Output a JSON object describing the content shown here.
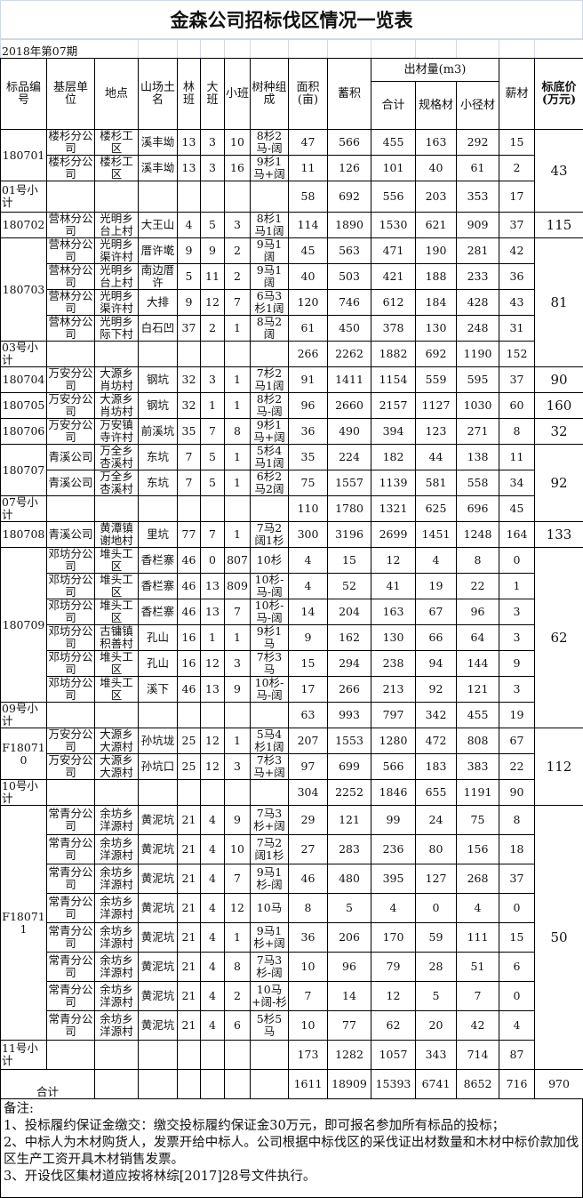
{
  "title": "金森公司招标伐区情况一览表",
  "period": "2018年第07期",
  "headers": {
    "lot_id": "标品编号",
    "unit": "基层单位",
    "location": "地点",
    "site_name": "山场土名",
    "lin_ban": "林班",
    "da_ban": "大班",
    "xiao_ban": "小班",
    "species": "树种组成",
    "area": "面积(亩)",
    "volume": "蓄积",
    "output_group": "出材量(m3)",
    "output_total": "合计",
    "standard_timber": "规格材",
    "small_timber": "小径材",
    "firewood": "薪材",
    "reserve_price": "标底价(万元)"
  },
  "groups": [
    {
      "id": "180701",
      "price": "43",
      "rows": [
        [
          "楼杉分公司",
          "楼杉工区",
          "溪丰坳",
          "13",
          "3",
          "10",
          "8杉2马-阔",
          "47",
          "566",
          "455",
          "163",
          "292",
          "15"
        ],
        [
          "楼杉分公司",
          "楼杉工区",
          "溪丰坳",
          "13",
          "3",
          "16",
          "9杉1马+阔",
          "11",
          "126",
          "101",
          "40",
          "61",
          "2"
        ]
      ],
      "subtotal": {
        "label": "01号小计",
        "values": [
          "58",
          "692",
          "556",
          "203",
          "353",
          "17"
        ]
      }
    },
    {
      "id": "180702",
      "price": "115",
      "rows": [
        [
          "营林分公司",
          "光明乡台上村",
          "大王山",
          "4",
          "5",
          "3",
          "8杉1马1阔",
          "114",
          "1890",
          "1530",
          "621",
          "909",
          "37"
        ]
      ]
    },
    {
      "id": "180703",
      "price": "81",
      "rows": [
        [
          "营林分公司",
          "光明乡渠许村",
          "厝许墘",
          "9",
          "9",
          "2",
          "9马1阔",
          "45",
          "563",
          "471",
          "190",
          "281",
          "42"
        ],
        [
          "营林分公司",
          "光明乡台上村",
          "南边厝许",
          "5",
          "11",
          "2",
          "9马1阔",
          "40",
          "503",
          "421",
          "188",
          "233",
          "36"
        ],
        [
          "营林分公司",
          "光明乡渠许村",
          "大排",
          "9",
          "12",
          "7",
          "6马3杉1阔",
          "120",
          "746",
          "612",
          "184",
          "428",
          "43"
        ],
        [
          "营林分公司",
          "光明乡际下村",
          "白石凹",
          "37",
          "2",
          "1",
          "8马2阔",
          "61",
          "450",
          "378",
          "130",
          "248",
          "31"
        ]
      ],
      "subtotal": {
        "label": "03号小计",
        "values": [
          "266",
          "2262",
          "1882",
          "692",
          "1190",
          "152"
        ]
      }
    },
    {
      "id": "180704",
      "price": "90",
      "rows": [
        [
          "万安分公司",
          "大源乡肖坊村",
          "钢坑",
          "32",
          "3",
          "1",
          "7杉2马1阔",
          "91",
          "1411",
          "1154",
          "559",
          "595",
          "37"
        ]
      ]
    },
    {
      "id": "180705",
      "price": "160",
      "rows": [
        [
          "万安分公司",
          "大源乡肖坊村",
          "钢坑",
          "32",
          "1",
          "1",
          "8杉2马-阔",
          "96",
          "2660",
          "2157",
          "1127",
          "1030",
          "60"
        ]
      ]
    },
    {
      "id": "180706",
      "price": "32",
      "rows": [
        [
          "万安分公司",
          "万安镇寺许村",
          "前溪坑",
          "35",
          "7",
          "8",
          "9杉1马+阔",
          "36",
          "490",
          "394",
          "123",
          "271",
          "8"
        ]
      ]
    },
    {
      "id": "180707",
      "price": "92",
      "rows": [
        [
          "青溪公司",
          "万全乡杏溪村",
          "东坑",
          "7",
          "5",
          "1",
          "5杉4马1阔",
          "35",
          "224",
          "182",
          "44",
          "138",
          "11"
        ],
        [
          "青溪公司",
          "万全乡杏溪村",
          "东坑",
          "7",
          "5",
          "1",
          "6杉2马2阔",
          "75",
          "1557",
          "1139",
          "581",
          "558",
          "34"
        ]
      ],
      "subtotal": {
        "label": "07号小计",
        "values": [
          "110",
          "1780",
          "1321",
          "625",
          "696",
          "45"
        ]
      }
    },
    {
      "id": "180708",
      "price": "133",
      "rows": [
        [
          "青溪公司",
          "黄潭镇谢地村",
          "里坑",
          "77",
          "7",
          "1",
          "7马2阔1杉",
          "300",
          "3196",
          "2699",
          "1451",
          "1248",
          "164"
        ]
      ]
    },
    {
      "id": "180709",
      "price": "62",
      "rows": [
        [
          "邓坊分公司",
          "堆头工区",
          "香栏寨",
          "46",
          "0",
          "807",
          "10杉",
          "4",
          "15",
          "12",
          "4",
          "8",
          "0"
        ],
        [
          "邓坊分公司",
          "堆头工区",
          "香栏寨",
          "46",
          "13",
          "809",
          "10杉-马-阔",
          "4",
          "52",
          "41",
          "19",
          "22",
          "1"
        ],
        [
          "邓坊分公司",
          "堆头工区",
          "香栏寨",
          "46",
          "13",
          "7",
          "10杉-马-阔",
          "14",
          "204",
          "163",
          "67",
          "96",
          "3"
        ],
        [
          "邓坊分公司",
          "古镛镇积善村",
          "孔山",
          "16",
          "1",
          "1",
          "9杉1马",
          "9",
          "162",
          "130",
          "66",
          "64",
          "3"
        ],
        [
          "邓坊分公司",
          "堆头工区",
          "孔山",
          "16",
          "12",
          "3",
          "7杉3马",
          "15",
          "294",
          "238",
          "94",
          "144",
          "9"
        ],
        [
          "邓坊分公司",
          "堆头工区",
          "溪下",
          "46",
          "13",
          "9",
          "10杉-马-阔",
          "17",
          "266",
          "213",
          "92",
          "121",
          "3"
        ]
      ],
      "subtotal": {
        "label": "09号小计",
        "values": [
          "63",
          "993",
          "797",
          "342",
          "455",
          "19"
        ]
      }
    },
    {
      "id": "F180710",
      "price": "112",
      "rows": [
        [
          "万安分公司",
          "大源乡大源村",
          "孙坑垅",
          "25",
          "12",
          "1",
          "5马4杉1阔",
          "207",
          "1553",
          "1280",
          "472",
          "808",
          "67"
        ],
        [
          "万安分公司",
          "大源乡大源村",
          "孙坑口",
          "25",
          "12",
          "3",
          "7杉3马+阔",
          "97",
          "699",
          "566",
          "183",
          "383",
          "22"
        ]
      ],
      "subtotal": {
        "label": "10号小计",
        "values": [
          "304",
          "2252",
          "1846",
          "655",
          "1191",
          "90"
        ]
      }
    },
    {
      "id": "F180711",
      "price": "50",
      "rows": [
        [
          "常青分公司",
          "余坊乡洋源村",
          "黄泥坑",
          "21",
          "4",
          "9",
          "7马3杉+阔",
          "29",
          "121",
          "99",
          "24",
          "75",
          "8"
        ],
        [
          "常青分公司",
          "余坊乡洋源村",
          "黄泥坑",
          "21",
          "4",
          "10",
          "7马2阔1杉",
          "27",
          "283",
          "236",
          "80",
          "156",
          "18"
        ],
        [
          "常青分公司",
          "余坊乡洋源村",
          "黄泥坑",
          "21",
          "4",
          "7",
          "9马1杉-阔",
          "46",
          "480",
          "395",
          "127",
          "268",
          "37"
        ],
        [
          "常青分公司",
          "余坊乡洋源村",
          "黄泥坑",
          "21",
          "4",
          "12",
          "10马",
          "8",
          "5",
          "4",
          "0",
          "4",
          "0"
        ],
        [
          "常青分公司",
          "余坊乡洋源村",
          "黄泥坑",
          "21",
          "4",
          "1",
          "9马1杉+阔",
          "36",
          "206",
          "170",
          "59",
          "111",
          "15"
        ],
        [
          "常青分公司",
          "余坊乡洋源村",
          "黄泥坑",
          "21",
          "4",
          "8",
          "7马3杉-阔",
          "10",
          "96",
          "79",
          "28",
          "51",
          "6"
        ],
        [
          "常青分公司",
          "余坊乡洋源村",
          "黄泥坑",
          "21",
          "4",
          "2",
          "10马+阔-杉",
          "7",
          "14",
          "12",
          "5",
          "7",
          "0"
        ],
        [
          "常青分公司",
          "余坊乡洋源村",
          "黄泥坑",
          "21",
          "4",
          "6",
          "5杉5马",
          "10",
          "77",
          "62",
          "20",
          "42",
          "4"
        ]
      ],
      "subtotal": {
        "label": "11号小计",
        "values": [
          "173",
          "1282",
          "1057",
          "343",
          "714",
          "87"
        ]
      }
    }
  ],
  "total": {
    "label": "合计",
    "values": [
      "1611",
      "18909",
      "15393",
      "6741",
      "8652",
      "716",
      "970"
    ]
  },
  "notes": {
    "heading": "备注:",
    "items": [
      "1、投标履约保证金缴交：缴交投标履约保证金30万元，即可报名参加所有标品的投标；",
      "2、中标人为木材购货人，发票开给中标人。公司根据中标伐区的采伐证出材数量和木材中标价款加伐区生产工资开具木材销售发票。",
      "3、开设伐区集材道应按将林综[2017]28号文件执行。"
    ]
  }
}
